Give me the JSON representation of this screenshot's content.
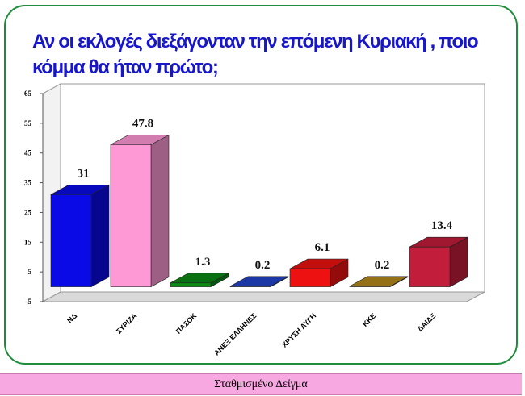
{
  "title": "Αν οι εκλογές διεξάγονταν την επόμενη Κυριακή , ποιο κόμμα θα ήταν πρώτο;",
  "footer": "Σταθμισμένο Δείγμα",
  "colors": {
    "frame": "#1e8c3a",
    "title": "#1717c9",
    "footer_bg": "#f7a8e0"
  },
  "chart_data": {
    "type": "bar",
    "title": "Αν οι εκλογές διεξάγονταν την επόμενη Κυριακή , ποιο κόμμα θα ήταν πρώτο;",
    "xlabel": "",
    "ylabel": "",
    "categories": [
      "ΝΔ",
      "ΣΥΡΙΖΑ",
      "ΠΑΣΟΚ",
      "ΑΝΕΞ ΕΛΛΗΝΕΣ",
      "ΧΡΥΣΗ ΑΥΓΗ",
      "ΚΚΕ",
      "ΔΑΙΔΞ"
    ],
    "values": [
      31,
      47.8,
      1.3,
      0.2,
      6.1,
      0.2,
      13.4
    ],
    "value_labels": [
      "31",
      "47.8",
      "1.3",
      "0.2",
      "6.1",
      "0.2",
      "13.4"
    ],
    "bar_colors": [
      "#0a0ae6",
      "#ff99d6",
      "#0b8a16",
      "#2244cc",
      "#ee1111",
      "#b58a1a",
      "#c21d3a"
    ],
    "yticks": [
      "-5",
      "5",
      "15",
      "25",
      "35",
      "45",
      "55",
      "65"
    ],
    "ylim": [
      -5,
      65
    ],
    "style": "3d",
    "grid": false,
    "legend": false
  }
}
